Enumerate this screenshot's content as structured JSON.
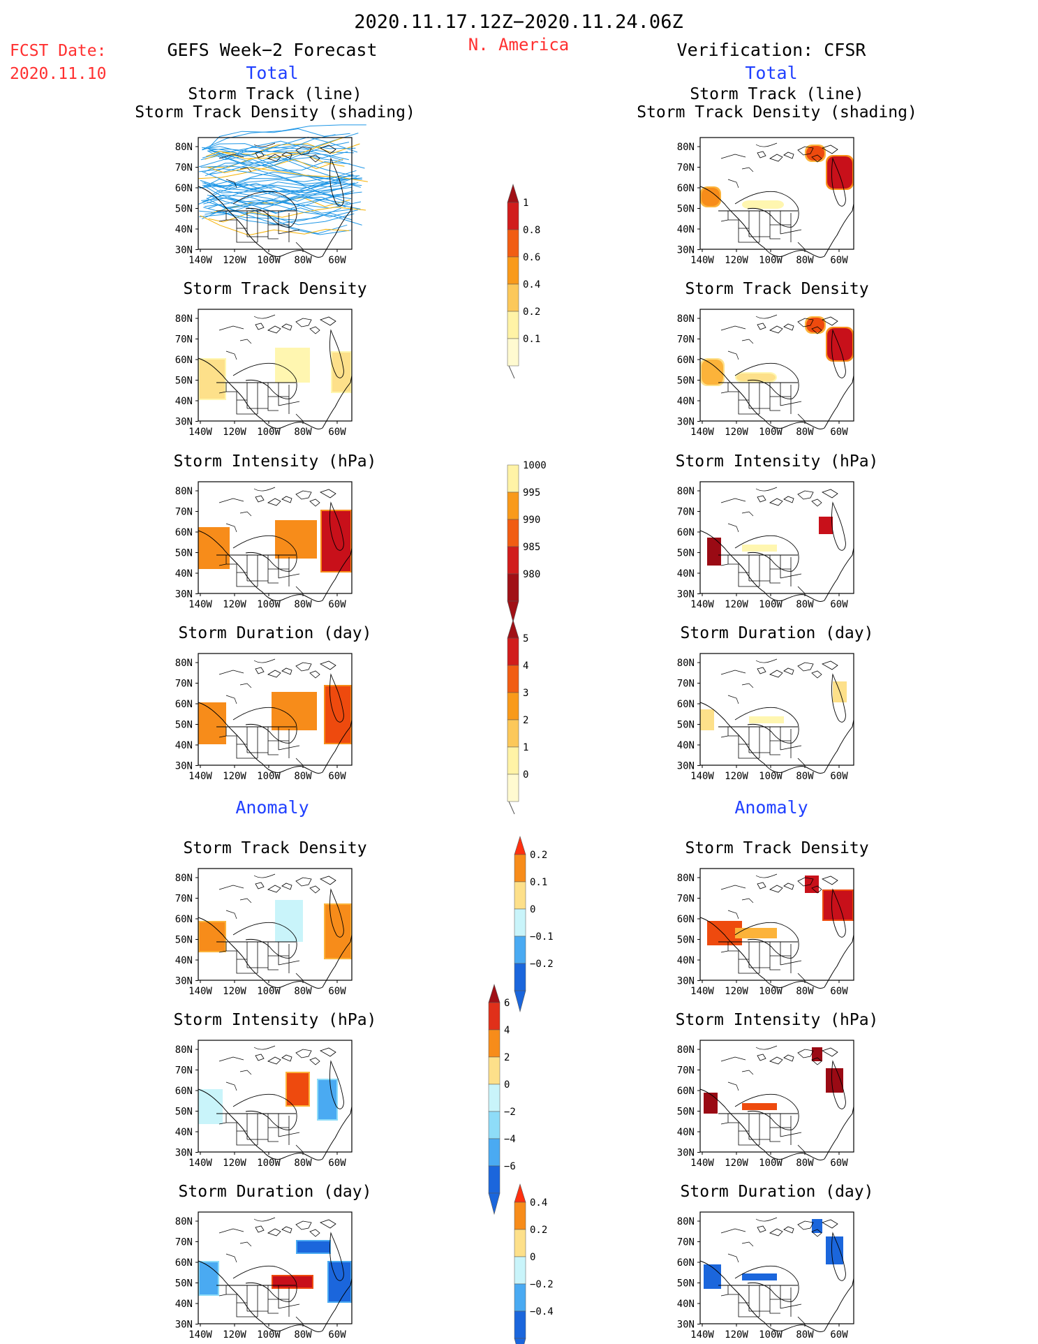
{
  "header": {
    "period": "2020.11.17.12Z−2020.11.24.06Z",
    "region": "N. America",
    "fcst_label": "FCST Date:",
    "fcst_date": "2020.11.10",
    "left_title": "GEFS Week−2 Forecast",
    "right_title": "Verification: CFSR",
    "total_label": "Total",
    "anomaly_label": "Anomaly"
  },
  "axes": {
    "lat_labels": [
      "80N",
      "70N",
      "60N",
      "50N",
      "40N",
      "30N"
    ],
    "lon_labels": [
      "140W",
      "120W",
      "100W",
      "80W",
      "60W"
    ]
  },
  "panel_titles": {
    "track_line": "Storm Track (line)",
    "track_shading": "Storm Track Density (shading)",
    "density": "Storm Track Density",
    "intensity": "Storm Intensity (hPa)",
    "duration": "Storm Duration (day)"
  },
  "colorbars": {
    "total_density": [
      "1",
      "0.8",
      "0.6",
      "0.4",
      "0.2",
      "0.1"
    ],
    "total_intensity": [
      "1000",
      "995",
      "990",
      "985",
      "980"
    ],
    "total_duration": [
      "5",
      "4",
      "3",
      "2",
      "1",
      "0"
    ],
    "anom_density": [
      "0.2",
      "0.1",
      "0",
      "−0.1",
      "−0.2"
    ],
    "anom_intensity": [
      "6",
      "4",
      "2",
      "0",
      "−2",
      "−4",
      "−6"
    ],
    "anom_duration": [
      "0.4",
      "0.2",
      "0",
      "−0.2",
      "−0.4"
    ]
  },
  "colors": {
    "header_red": "#ff3030",
    "header_blue": "#2040ff",
    "track_blue": "#1e96e6",
    "track_orange": "#f5b000"
  }
}
